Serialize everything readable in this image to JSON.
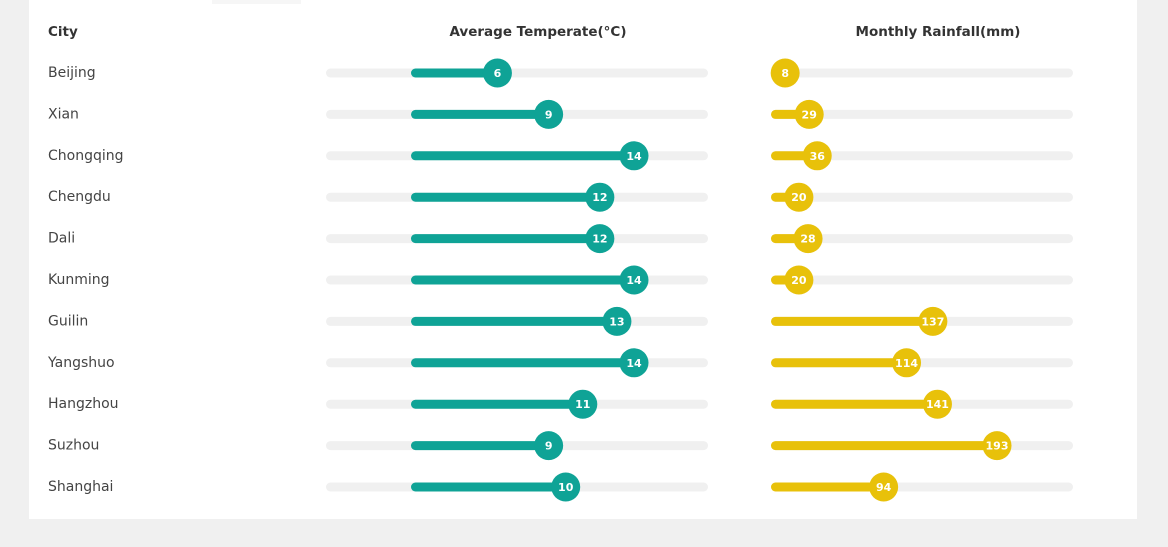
{
  "table": {
    "headers": [
      "City",
      "Average Temperate(°C)",
      "Monthly Rainfall(mm)"
    ],
    "rows": [
      [
        "Beijing",
        6,
        8
      ],
      [
        "Xian",
        9,
        29
      ],
      [
        "Chongqing",
        14,
        36
      ],
      [
        "Chengdu",
        12,
        20
      ],
      [
        "Dali",
        12,
        28
      ],
      [
        "Kunming",
        14,
        20
      ],
      [
        "Guilin",
        13,
        137
      ],
      [
        "Yangshuo",
        14,
        114
      ],
      [
        "Hangzhou",
        11,
        141
      ],
      [
        "Suzhou",
        9,
        193
      ],
      [
        "Shanghai",
        10,
        94
      ]
    ],
    "colors": [
      "#0fa396",
      "#e8c10a"
    ]
  }
}
